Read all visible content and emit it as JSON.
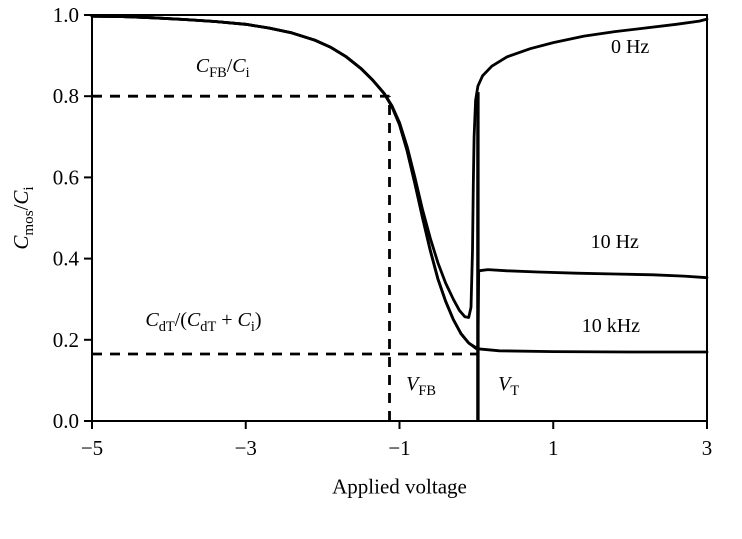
{
  "chart_data": {
    "type": "line",
    "title": "",
    "xlabel": "Applied voltage",
    "ylabel": "C_mos/C_i",
    "xlim": [
      -5,
      3
    ],
    "ylim": [
      0.0,
      1.0
    ],
    "x_tick_labels": [
      -5,
      -3,
      -1,
      1,
      3
    ],
    "y_tick_labels": [
      "0.0",
      "0.2",
      "0.4",
      "0.6",
      "0.8",
      "1.0"
    ],
    "y_tick_values": [
      0.0,
      0.2,
      0.4,
      0.6,
      0.8,
      1.0
    ],
    "grid": false,
    "line_color": "#000000",
    "series": [
      {
        "name": "0 Hz",
        "points": [
          [
            -5,
            0.997
          ],
          [
            -4.6,
            0.996
          ],
          [
            -4.2,
            0.993
          ],
          [
            -3.8,
            0.989
          ],
          [
            -3.4,
            0.984
          ],
          [
            -3.0,
            0.977
          ],
          [
            -2.7,
            0.968
          ],
          [
            -2.4,
            0.956
          ],
          [
            -2.1,
            0.938
          ],
          [
            -1.9,
            0.921
          ],
          [
            -1.7,
            0.898
          ],
          [
            -1.5,
            0.868
          ],
          [
            -1.35,
            0.84
          ],
          [
            -1.2,
            0.807
          ],
          [
            -1.1,
            0.777
          ],
          [
            -1.0,
            0.735
          ],
          [
            -0.9,
            0.675
          ],
          [
            -0.8,
            0.6
          ],
          [
            -0.7,
            0.52
          ],
          [
            -0.6,
            0.45
          ],
          [
            -0.5,
            0.39
          ],
          [
            -0.4,
            0.34
          ],
          [
            -0.3,
            0.3
          ],
          [
            -0.22,
            0.272
          ],
          [
            -0.15,
            0.257
          ],
          [
            -0.1,
            0.255
          ],
          [
            -0.07,
            0.28
          ],
          [
            -0.05,
            0.42
          ],
          [
            -0.04,
            0.58
          ],
          [
            -0.03,
            0.7
          ],
          [
            -0.01,
            0.79
          ],
          [
            0.02,
            0.825
          ],
          [
            0.08,
            0.85
          ],
          [
            0.2,
            0.874
          ],
          [
            0.4,
            0.897
          ],
          [
            0.7,
            0.917
          ],
          [
            1.0,
            0.932
          ],
          [
            1.4,
            0.948
          ],
          [
            1.8,
            0.959
          ],
          [
            2.2,
            0.968
          ],
          [
            2.6,
            0.977
          ],
          [
            2.9,
            0.985
          ],
          [
            3.0,
            0.99
          ]
        ]
      },
      {
        "name": "10 Hz",
        "points": [
          [
            -5,
            0.997
          ],
          [
            -4.6,
            0.996
          ],
          [
            -4.2,
            0.993
          ],
          [
            -3.8,
            0.989
          ],
          [
            -3.4,
            0.984
          ],
          [
            -3.0,
            0.977
          ],
          [
            -2.7,
            0.968
          ],
          [
            -2.4,
            0.956
          ],
          [
            -2.1,
            0.938
          ],
          [
            -1.9,
            0.921
          ],
          [
            -1.7,
            0.898
          ],
          [
            -1.5,
            0.868
          ],
          [
            -1.35,
            0.84
          ],
          [
            -1.2,
            0.807
          ],
          [
            -1.1,
            0.775
          ],
          [
            -1.0,
            0.73
          ],
          [
            -0.9,
            0.665
          ],
          [
            -0.8,
            0.585
          ],
          [
            -0.7,
            0.5
          ],
          [
            -0.6,
            0.42
          ],
          [
            -0.5,
            0.35
          ],
          [
            -0.4,
            0.295
          ],
          [
            -0.3,
            0.25
          ],
          [
            -0.2,
            0.215
          ],
          [
            -0.1,
            0.192
          ],
          [
            0.0,
            0.18
          ],
          [
            0.02,
            0.185
          ],
          [
            0.03,
            0.37
          ],
          [
            0.15,
            0.373
          ],
          [
            0.4,
            0.37
          ],
          [
            0.8,
            0.367
          ],
          [
            1.3,
            0.364
          ],
          [
            1.8,
            0.362
          ],
          [
            2.3,
            0.36
          ],
          [
            2.7,
            0.357
          ],
          [
            3.0,
            0.353
          ]
        ]
      },
      {
        "name": "10 kHz",
        "points": [
          [
            -5,
            0.997
          ],
          [
            -4.6,
            0.996
          ],
          [
            -4.2,
            0.993
          ],
          [
            -3.8,
            0.989
          ],
          [
            -3.4,
            0.984
          ],
          [
            -3.0,
            0.977
          ],
          [
            -2.7,
            0.968
          ],
          [
            -2.4,
            0.956
          ],
          [
            -2.1,
            0.938
          ],
          [
            -1.9,
            0.921
          ],
          [
            -1.7,
            0.898
          ],
          [
            -1.5,
            0.868
          ],
          [
            -1.35,
            0.84
          ],
          [
            -1.2,
            0.807
          ],
          [
            -1.1,
            0.775
          ],
          [
            -1.0,
            0.73
          ],
          [
            -0.9,
            0.665
          ],
          [
            -0.8,
            0.585
          ],
          [
            -0.7,
            0.5
          ],
          [
            -0.6,
            0.42
          ],
          [
            -0.5,
            0.35
          ],
          [
            -0.4,
            0.295
          ],
          [
            -0.3,
            0.25
          ],
          [
            -0.2,
            0.215
          ],
          [
            -0.1,
            0.192
          ],
          [
            0.0,
            0.178
          ],
          [
            0.3,
            0.173
          ],
          [
            1.0,
            0.171
          ],
          [
            2.0,
            0.17
          ],
          [
            3.0,
            0.17
          ]
        ]
      }
    ],
    "dashed_guides": [
      {
        "id": "flatband-capacitance-level",
        "from": [
          -5,
          0.8
        ],
        "to": [
          -1.13,
          0.8
        ]
      },
      {
        "id": "flatband-voltage-line",
        "from": [
          -1.13,
          0.0
        ],
        "to": [
          -1.13,
          0.8
        ]
      },
      {
        "id": "deep-depletion-capacitance-level",
        "from": [
          -5,
          0.165
        ],
        "to": [
          0.02,
          0.165
        ]
      }
    ],
    "solid_guides": [
      {
        "id": "threshold-voltage-line",
        "from": [
          0.02,
          0.0
        ],
        "to": [
          0.02,
          0.81
        ]
      }
    ],
    "annotations": [
      {
        "id": "label-0hz",
        "text": "0 Hz",
        "x": 2.0,
        "y": 0.92
      },
      {
        "id": "label-10hz",
        "text": "10 Hz",
        "x": 1.8,
        "y": 0.44
      },
      {
        "id": "label-10khz",
        "text": "10 kHz",
        "x": 1.75,
        "y": 0.235
      },
      {
        "id": "label-cfb",
        "text": "C_FB/C_i",
        "x": -3.3,
        "y": 0.87
      },
      {
        "id": "label-cdt",
        "text": "C_dT/(C_dT + C_i)",
        "x": -3.55,
        "y": 0.245
      },
      {
        "id": "label-vfb",
        "text": "V_FB",
        "x": -0.72,
        "y": 0.085
      },
      {
        "id": "label-vt",
        "text": "V_T",
        "x": 0.42,
        "y": 0.085
      }
    ]
  }
}
